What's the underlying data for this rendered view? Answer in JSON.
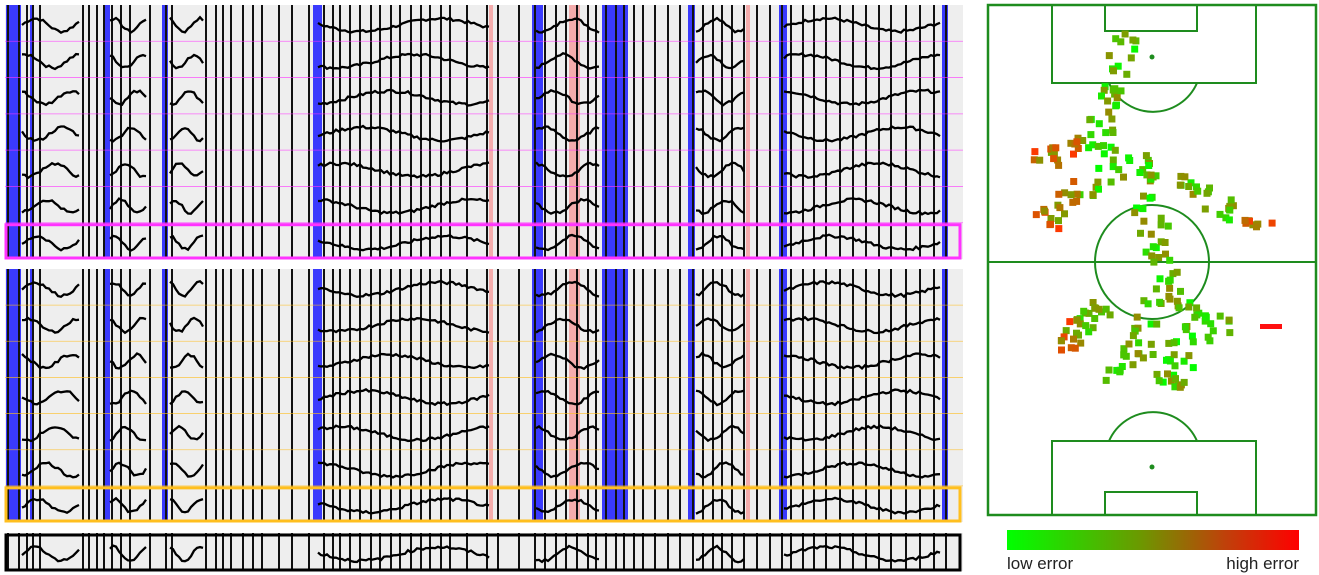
{
  "legend": {
    "low_label": "low error",
    "high_label": "high error",
    "low_color": "#00ff00",
    "high_color": "#ff0000"
  },
  "colors": {
    "background": "#eeeeee",
    "separator": "#111111",
    "blue_marker": "#1a1aff",
    "red_marker": "#ff3030",
    "group_a_highlight": "#ff33ff",
    "group_b_highlight": "#ffbf1f",
    "summary_frame": "#000000",
    "pitch_line": "#1e8c1e"
  },
  "icons": {
    "pitch": "soccer-pitch-icon"
  }
}
